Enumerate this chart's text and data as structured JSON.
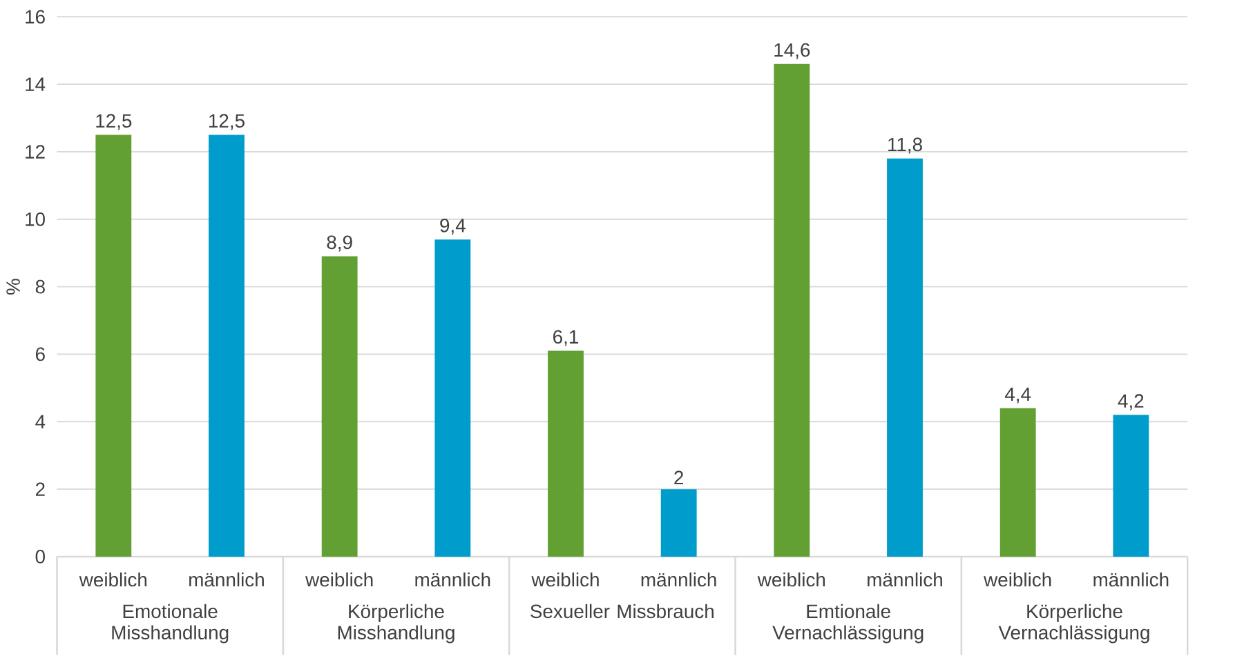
{
  "chart_data": {
    "type": "bar",
    "ylabel": "%",
    "categories": [
      "weiblich",
      "männlich",
      "weiblich",
      "männlich",
      "weiblich",
      "männlich",
      "weiblich",
      "männlich",
      "weiblich",
      "männlich"
    ],
    "values": [
      12.5,
      12.5,
      8.9,
      9.4,
      6.1,
      2,
      14.6,
      11.8,
      4.4,
      4.2
    ],
    "colors": [
      "#62a033",
      "#009dcc",
      "#62a033",
      "#009dcc",
      "#62a033",
      "#009dcc",
      "#62a033",
      "#009dcc",
      "#62a033",
      "#009dcc"
    ],
    "value_labels": [
      "12,5",
      "12,5",
      "8,9",
      "9,4",
      "6,1",
      "2",
      "14,6",
      "11,8",
      "4,4",
      "4,2"
    ],
    "annotations": [
      "Emotionale Misshandlung",
      "Körperliche Misshandlung",
      "Sexueller Missbrauch",
      "Emtionale Vernachlässigung",
      "Körperliche Vernachlässigung"
    ],
    "ylim": [
      0,
      16
    ],
    "yticks": [
      0,
      2,
      4,
      6,
      8,
      10,
      12,
      14,
      16
    ],
    "grid": "y"
  }
}
